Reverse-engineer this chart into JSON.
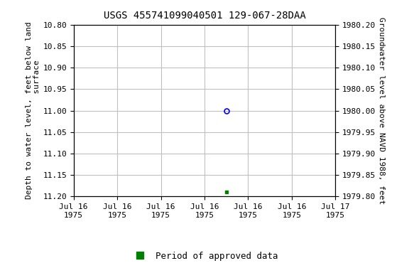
{
  "title": "USGS 455741099040501 129-067-28DAA",
  "ylabel_left": "Depth to water level, feet below land\n surface",
  "ylabel_right": "Groundwater level above NAVD 1988, feet",
  "ylim_left": [
    10.8,
    11.2
  ],
  "ylim_right": [
    1979.8,
    1980.2
  ],
  "y_ticks_left": [
    10.8,
    10.85,
    10.9,
    10.95,
    11.0,
    11.05,
    11.1,
    11.15,
    11.2
  ],
  "y_ticks_right": [
    1979.8,
    1979.85,
    1979.9,
    1979.95,
    1980.0,
    1980.05,
    1980.1,
    1980.15,
    1980.2
  ],
  "data_point_open_x": 3.5,
  "data_point_open_y": 11.0,
  "data_point_filled_x": 3.5,
  "data_point_filled_y": 11.19,
  "xlim": [
    0,
    6
  ],
  "x_ticks": [
    0,
    1,
    2,
    3,
    4,
    5,
    6
  ],
  "x_tick_labels": [
    "Jul 16\n1975",
    "Jul 16\n1975",
    "Jul 16\n1975",
    "Jul 16\n1975",
    "Jul 16\n1975",
    "Jul 16\n1975",
    "Jul 17\n1975"
  ],
  "legend_label": "Period of approved data",
  "legend_color": "#008000",
  "background_color": "#ffffff",
  "grid_color": "#c0c0c0",
  "open_marker_color": "#0000ff",
  "filled_marker_color": "#008000",
  "title_fontsize": 10,
  "axis_label_fontsize": 8,
  "tick_fontsize": 8
}
